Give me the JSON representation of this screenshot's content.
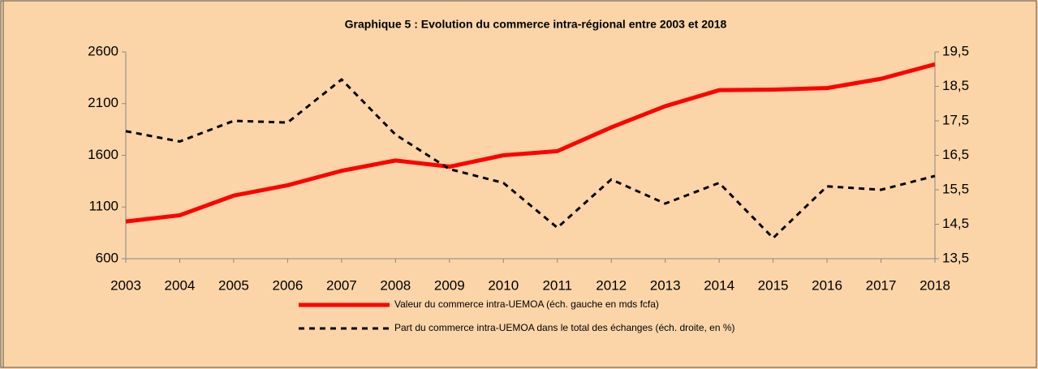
{
  "chart_data": {
    "type": "line",
    "title": "Graphique 5 : Evolution du commerce intra-régional entre  2003 et 2018",
    "categories": [
      "2003",
      "2004",
      "2005",
      "2006",
      "2007",
      "2008",
      "2009",
      "2010",
      "2011",
      "2012",
      "2013",
      "2014",
      "2015",
      "2016",
      "2017",
      "2018"
    ],
    "series": [
      {
        "name": "Valeur du commerce intra-UEMOA (éch. gauche en mds fcfa)",
        "color": "#ff0000",
        "line_style": "solid",
        "values": [
          960,
          1020,
          1210,
          1310,
          1450,
          1550,
          1490,
          1600,
          1640,
          1870,
          2075,
          2230,
          2235,
          2250,
          2340,
          2480
        ]
      },
      {
        "name": "Part du commerce intra-UEMOA dans le total des échanges (éch. droite, en %)",
        "color": "#000000",
        "line_style": "dashed",
        "axis": "y2",
        "values": [
          17.2,
          16.9,
          17.5,
          17.45,
          18.7,
          17.1,
          16.1,
          15.7,
          14.4,
          15.8,
          15.1,
          15.7,
          14.1,
          15.6,
          15.5,
          15.9
        ]
      }
    ],
    "ylim": [
      600,
      2600
    ],
    "yticks": [
      600,
      1100,
      1600,
      2100,
      2600
    ],
    "y2lim": [
      13.5,
      19.5
    ],
    "y2ticks": [
      {
        "value": 13.5,
        "label": "13,5"
      },
      {
        "value": 14.5,
        "label": "14,5"
      },
      {
        "value": 15.5,
        "label": "15,5"
      },
      {
        "value": 16.5,
        "label": "16,5"
      },
      {
        "value": 17.5,
        "label": "17,5"
      },
      {
        "value": 18.5,
        "label": "18,5"
      },
      {
        "value": 19.5,
        "label": "19,5"
      }
    ],
    "grid": false
  }
}
